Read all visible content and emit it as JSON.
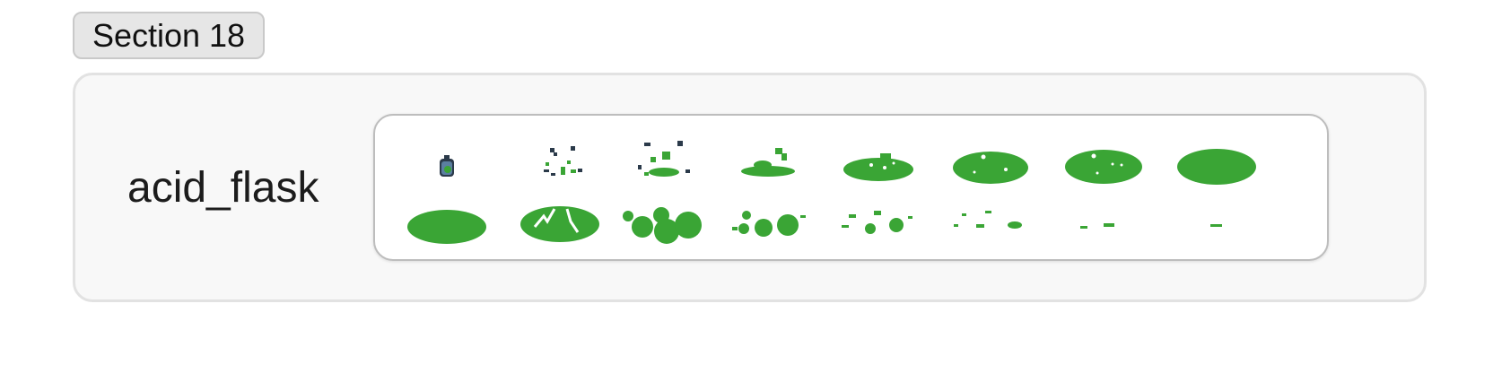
{
  "section": {
    "label": "Section 18"
  },
  "asset": {
    "name": "acid_flask"
  },
  "sprite_sheet": {
    "rows": 2,
    "columns": 8,
    "frame_count": 16,
    "colors": {
      "acid": "#3aa535",
      "flask_glass": "#5b7fa0",
      "flask_outline": "#2b3a4a",
      "highlight": "#ffffff"
    }
  }
}
